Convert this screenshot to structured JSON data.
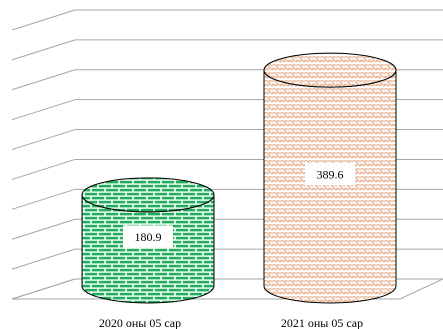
{
  "chart_data": {
    "type": "bar",
    "categories": [
      "2020 оны 05 сар",
      "2021 оны 05 сар"
    ],
    "values": [
      180.9,
      389.6
    ],
    "data_labels": [
      "180.9",
      "389.6"
    ],
    "ylim": [
      0,
      450
    ],
    "grid": true,
    "three_d": true,
    "bar_shape": "cylinder",
    "legend": "none",
    "colors": {
      "grid": "#a6a6a6",
      "series_2020_pattern": "#1fae5c",
      "series_2020_bg": "#ffffff",
      "series_2021_pattern": "#e8b89a",
      "series_2021_bg": "#ffffff",
      "outline": "#000000"
    },
    "patterns": [
      "brick",
      "zigzag"
    ]
  }
}
